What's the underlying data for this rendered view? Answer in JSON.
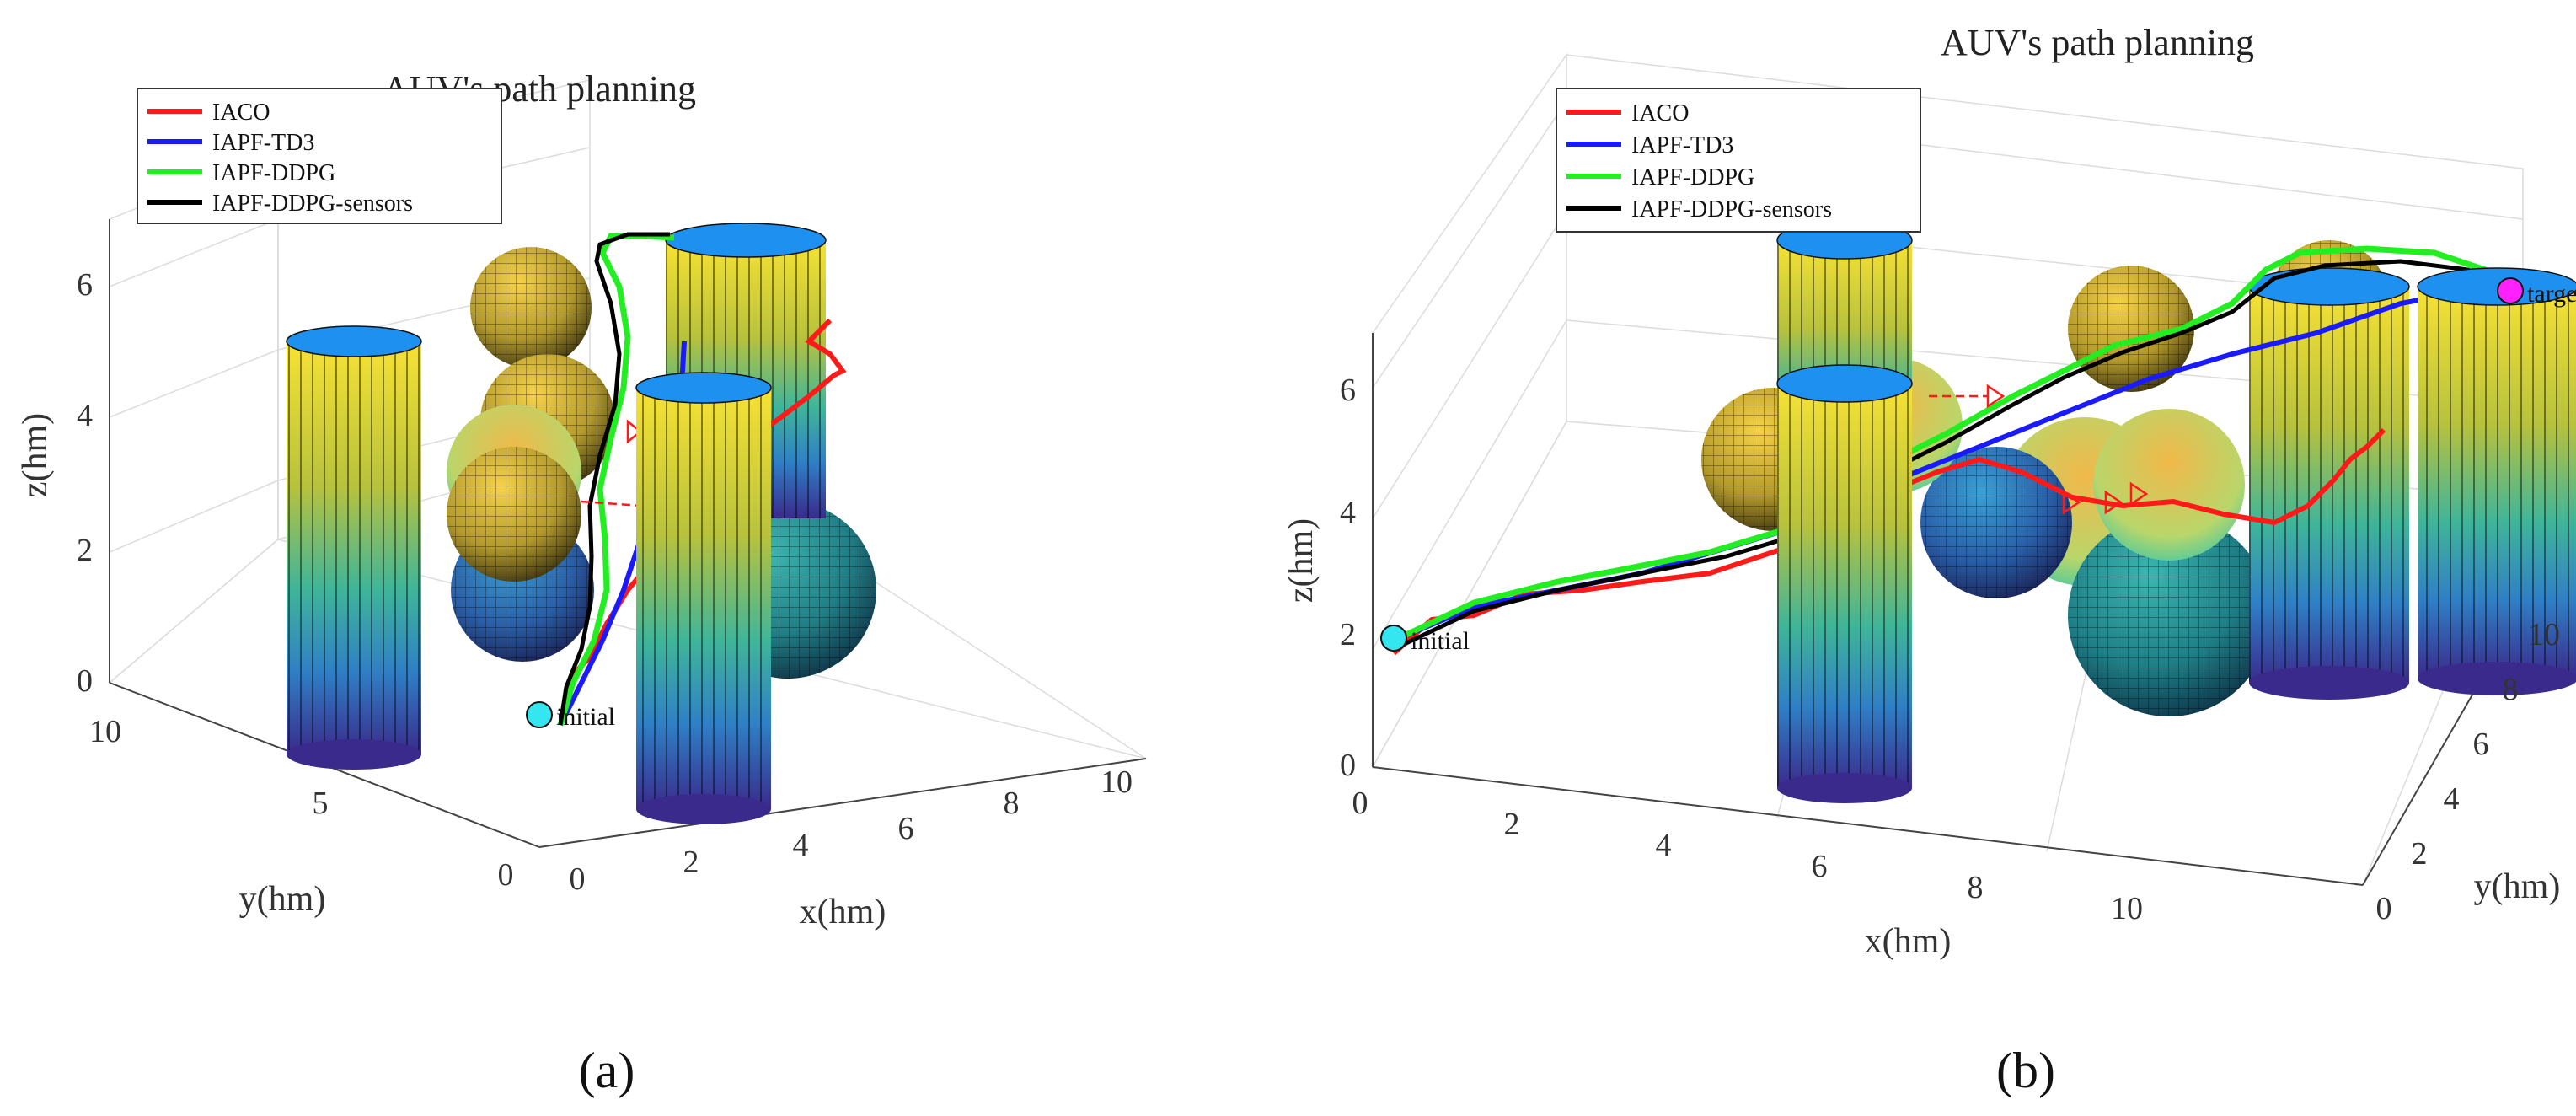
{
  "chart_data": [
    {
      "type": "line",
      "panel_label": "(a)",
      "title": "AUV's path planning",
      "xlabel": "x(hm)",
      "ylabel": "y(hm)",
      "zlabel": "z(hm)",
      "x_ticks": [
        "0",
        "2",
        "4",
        "6",
        "8",
        "10"
      ],
      "y_ticks": [
        "0",
        "5",
        "10"
      ],
      "z_ticks": [
        "0",
        "2",
        "4",
        "6"
      ],
      "xlim": [
        0,
        10
      ],
      "ylim": [
        0,
        10
      ],
      "zlim": [
        0,
        6.5
      ],
      "grid": true,
      "legend_position": "top-left",
      "series": [
        {
          "name": "IACO",
          "color": "#ff1a1a"
        },
        {
          "name": "IAPF-TD3",
          "color": "#1a1aff"
        },
        {
          "name": "IAPF-DDPG",
          "color": "#22ee22"
        },
        {
          "name": "IAPF-DDPG-sensors",
          "color": "#000000"
        }
      ],
      "markers": [
        {
          "label": "initial",
          "color": "#33e6f0"
        }
      ],
      "obstacles": [
        "cylinder",
        "cylinder",
        "cylinder",
        "sphere",
        "sphere",
        "sphere",
        "sphere",
        "sphere",
        "sphere"
      ]
    },
    {
      "type": "line",
      "panel_label": "(b)",
      "title": "AUV's path planning",
      "xlabel": "x(hm)",
      "ylabel": "y(hm)",
      "zlabel": "z(hm)",
      "x_ticks": [
        "0",
        "2",
        "4",
        "6",
        "8",
        "10"
      ],
      "y_ticks": [
        "0",
        "2",
        "4",
        "6",
        "8",
        "10"
      ],
      "z_ticks": [
        "0",
        "2",
        "4",
        "6"
      ],
      "xlim": [
        0,
        10
      ],
      "ylim": [
        0,
        10
      ],
      "zlim": [
        0,
        7
      ],
      "grid": true,
      "legend_position": "top-left",
      "series": [
        {
          "name": "IACO",
          "color": "#ff1a1a"
        },
        {
          "name": "IAPF-TD3",
          "color": "#1a1aff"
        },
        {
          "name": "IAPF-DDPG",
          "color": "#22ee22"
        },
        {
          "name": "IAPF-DDPG-sensors",
          "color": "#000000"
        }
      ],
      "markers": [
        {
          "label": "initial",
          "color": "#33e6f0"
        },
        {
          "label": "target",
          "color": "#ff22ff"
        }
      ],
      "obstacles": [
        "cylinder",
        "cylinder",
        "cylinder",
        "sphere",
        "sphere",
        "sphere",
        "sphere",
        "sphere",
        "sphere",
        "sphere"
      ]
    }
  ]
}
